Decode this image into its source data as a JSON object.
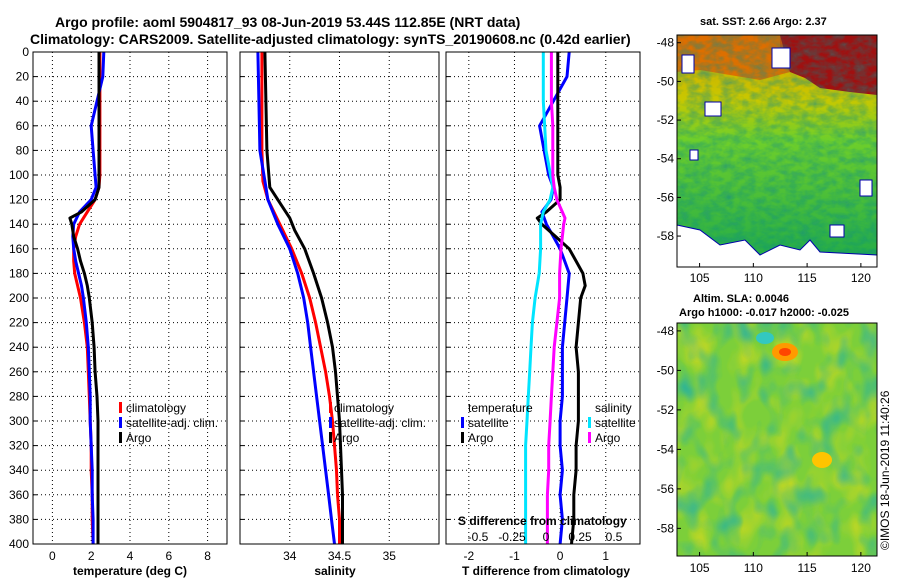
{
  "header": {
    "title_line1": "Argo profile: aoml 5904817_93 08-Jun-2019 53.44S 112.85E (NRT data)",
    "title_line2": "Climatology: CARS2009. Satellite-adjusted climatology: synTS_20190608.nc (0.42d earlier)"
  },
  "colors": {
    "climatology": "#ff0000",
    "satellite": "#0000ff",
    "argo": "#000000",
    "satellite_s": "#00e5ff",
    "argo_s": "#ff00ff"
  },
  "chart_data": [
    {
      "type": "line",
      "name": "temperature",
      "xlabel": "temperature (deg C)",
      "ylabel": "depth",
      "xlim": [
        -1,
        9
      ],
      "ylim": [
        400,
        0
      ],
      "xticks": [
        0,
        2,
        4,
        6,
        8
      ],
      "yticks": [
        0,
        20,
        40,
        60,
        80,
        100,
        120,
        140,
        160,
        180,
        200,
        220,
        240,
        260,
        280,
        300,
        320,
        340,
        360,
        380,
        400
      ],
      "grid": true,
      "legend": [
        "climatology",
        "satellite-adj. clim.",
        "Argo"
      ],
      "legend_position": "lower-right",
      "series": [
        {
          "name": "climatology",
          "color": "#ff0000",
          "depth": [
            0,
            20,
            40,
            60,
            80,
            100,
            110,
            120,
            130,
            140,
            150,
            160,
            170,
            180,
            190,
            200,
            220,
            240,
            260,
            280,
            300,
            320,
            340,
            360,
            380,
            400
          ],
          "values": [
            2.45,
            2.45,
            2.45,
            2.45,
            2.45,
            2.45,
            2.4,
            2.2,
            1.8,
            1.4,
            1.2,
            1.1,
            1.1,
            1.15,
            1.3,
            1.45,
            1.65,
            1.8,
            1.85,
            1.9,
            1.95,
            2.0,
            2.0,
            2.05,
            2.05,
            2.1
          ]
        },
        {
          "name": "satellite-adj. clim.",
          "color": "#0000ff",
          "depth": [
            0,
            20,
            40,
            60,
            80,
            100,
            110,
            120,
            130,
            140,
            150,
            160,
            170,
            180,
            190,
            200,
            220,
            240,
            260,
            280,
            300,
            320,
            340,
            360,
            380,
            400
          ],
          "values": [
            2.65,
            2.6,
            2.3,
            2.0,
            2.1,
            2.2,
            2.25,
            2.0,
            1.4,
            1.1,
            1.05,
            1.1,
            1.2,
            1.35,
            1.5,
            1.6,
            1.75,
            1.85,
            1.9,
            1.95,
            1.95,
            2.0,
            2.05,
            2.05,
            2.1,
            2.1
          ]
        },
        {
          "name": "Argo",
          "color": "#000000",
          "depth": [
            0,
            20,
            40,
            60,
            80,
            100,
            110,
            120,
            130,
            135,
            140,
            150,
            160,
            170,
            180,
            190,
            200,
            220,
            240,
            260,
            280,
            300,
            320,
            340,
            360,
            380,
            400
          ],
          "values": [
            2.4,
            2.4,
            2.4,
            2.4,
            2.4,
            2.4,
            2.4,
            2.2,
            1.5,
            0.9,
            1.0,
            1.1,
            1.3,
            1.45,
            1.65,
            1.8,
            1.9,
            2.05,
            2.15,
            2.2,
            2.3,
            2.35,
            2.35,
            2.35,
            2.35,
            2.35,
            2.35
          ]
        }
      ]
    },
    {
      "type": "line",
      "name": "salinity",
      "xlabel": "salinity",
      "ylabel": "depth",
      "xlim": [
        33.5,
        35.5
      ],
      "ylim": [
        400,
        0
      ],
      "xticks": [
        34,
        34.5,
        35
      ],
      "xticklabels": [
        "34",
        "34.5",
        "35"
      ],
      "yticks": [
        0,
        20,
        40,
        60,
        80,
        100,
        120,
        140,
        160,
        180,
        200,
        220,
        240,
        260,
        280,
        300,
        320,
        340,
        360,
        380,
        400
      ],
      "grid": true,
      "legend": [
        "climatology",
        "satellite-adj. clim.",
        "Argo"
      ],
      "legend_position": "lower-right",
      "series": [
        {
          "name": "climatology",
          "color": "#ff0000",
          "depth": [
            0,
            40,
            80,
            105,
            120,
            140,
            160,
            180,
            200,
            220,
            240,
            260,
            280,
            300,
            320,
            340,
            360,
            380,
            400
          ],
          "values": [
            33.72,
            33.72,
            33.72,
            33.73,
            33.78,
            33.9,
            34.02,
            34.12,
            34.2,
            34.26,
            34.31,
            34.36,
            34.4,
            34.43,
            34.45,
            34.47,
            34.48,
            34.5,
            34.5
          ]
        },
        {
          "name": "satellite-adj. clim.",
          "color": "#0000ff",
          "depth": [
            0,
            40,
            80,
            120,
            140,
            160,
            180,
            200,
            220,
            240,
            260,
            280,
            300,
            320,
            340,
            360,
            380,
            400
          ],
          "values": [
            33.68,
            33.69,
            33.7,
            33.78,
            33.88,
            34.0,
            34.08,
            34.14,
            34.18,
            34.21,
            34.24,
            34.27,
            34.3,
            34.33,
            34.36,
            34.39,
            34.42,
            34.45
          ]
        },
        {
          "name": "Argo",
          "color": "#000000",
          "depth": [
            0,
            40,
            80,
            110,
            125,
            135,
            145,
            160,
            180,
            200,
            220,
            240,
            260,
            280,
            300,
            320,
            340,
            360,
            380,
            400
          ],
          "values": [
            33.75,
            33.76,
            33.77,
            33.8,
            33.92,
            34.0,
            34.05,
            34.15,
            34.24,
            34.32,
            34.38,
            34.43,
            34.46,
            34.48,
            34.5,
            34.51,
            34.52,
            34.53,
            34.53,
            34.53
          ]
        }
      ]
    },
    {
      "type": "line",
      "name": "differences",
      "xlabel": "T difference from climatology",
      "xlim": [
        -2.5,
        1.75
      ],
      "ylim": [
        400,
        0
      ],
      "xticks": [
        -2,
        -1,
        0,
        1
      ],
      "top_axis_label": "S difference from climatology",
      "top_ticks": [
        -0.5,
        -0.25,
        0,
        0.25,
        0.5
      ],
      "top_ticklabels": [
        "-0.5",
        "-0.25",
        "0",
        "0.25",
        "0.5"
      ],
      "yticks": [
        0,
        20,
        40,
        60,
        80,
        100,
        120,
        140,
        160,
        180,
        200,
        220,
        240,
        260,
        280,
        300,
        320,
        340,
        360,
        380,
        400
      ],
      "grid": true,
      "legend_temperature_title": "temperature",
      "legend_salinity_title": "salinity",
      "legend_temperature": [
        "satellite",
        "Argo"
      ],
      "legend_salinity": [
        "satellite",
        "Argo"
      ],
      "series": [
        {
          "name": "T satellite",
          "color": "#0000ff",
          "depth": [
            0,
            20,
            40,
            60,
            80,
            100,
            110,
            120,
            130,
            140,
            150,
            160,
            170,
            180,
            200,
            220,
            240,
            260,
            280,
            300,
            320,
            340,
            360,
            380,
            400
          ],
          "values": [
            0.2,
            0.15,
            -0.15,
            -0.45,
            -0.35,
            -0.25,
            -0.15,
            -0.2,
            -0.4,
            -0.3,
            -0.15,
            0.0,
            0.1,
            0.2,
            0.15,
            0.1,
            0.05,
            0.05,
            0.05,
            0.0,
            0.0,
            0.05,
            0.0,
            0.05,
            0.0
          ]
        },
        {
          "name": "T Argo",
          "color": "#000000",
          "depth": [
            0,
            20,
            40,
            60,
            80,
            100,
            110,
            120,
            130,
            135,
            140,
            150,
            160,
            170,
            180,
            190,
            200,
            220,
            240,
            260,
            280,
            300,
            320,
            340,
            360,
            380,
            400
          ],
          "values": [
            -0.05,
            -0.05,
            -0.05,
            -0.05,
            -0.05,
            -0.05,
            0.0,
            0.0,
            -0.3,
            -0.5,
            -0.4,
            -0.1,
            0.2,
            0.35,
            0.5,
            0.55,
            0.45,
            0.4,
            0.35,
            0.4,
            0.4,
            0.4,
            0.35,
            0.35,
            0.3,
            0.3,
            0.25
          ]
        },
        {
          "name": "S satellite",
          "color": "#00e5ff",
          "depth": [
            0,
            40,
            80,
            110,
            120,
            130,
            140,
            160,
            180,
            200,
            220,
            240,
            260,
            280,
            300,
            320,
            340,
            360,
            380,
            400
          ],
          "values": [
            -0.02,
            -0.02,
            0.0,
            0.05,
            0.03,
            -0.02,
            -0.04,
            -0.04,
            -0.05,
            -0.08,
            -0.1,
            -0.11,
            -0.12,
            -0.13,
            -0.14,
            -0.15,
            -0.15,
            -0.15,
            -0.15,
            -0.15
          ]
        },
        {
          "name": "S Argo",
          "color": "#ff00ff",
          "depth": [
            0,
            20,
            40,
            60,
            80,
            100,
            110,
            120,
            130,
            135,
            140,
            160,
            180,
            200,
            220,
            240,
            260,
            280,
            300,
            320,
            340,
            360,
            380,
            400
          ],
          "values": [
            0.04,
            0.04,
            0.04,
            0.05,
            0.05,
            0.05,
            0.06,
            0.08,
            0.12,
            0.14,
            0.13,
            0.11,
            0.1,
            0.1,
            0.08,
            0.06,
            0.05,
            0.04,
            0.03,
            0.02,
            0.02,
            0.01,
            0.01,
            0.01
          ]
        }
      ]
    },
    {
      "type": "heatmap",
      "name": "sst_map",
      "title": "sat. SST: 2.66 Argo: 2.37",
      "xticks": [
        105,
        110,
        115,
        120
      ],
      "yticks": [
        -48,
        -50,
        -52,
        -54,
        -56,
        -58
      ]
    },
    {
      "type": "heatmap",
      "name": "sla_map",
      "title_line1": "Altim. SLA: 0.0046",
      "title_line2": "Argo h1000: -0.017 h2000: -0.025",
      "xticks": [
        105,
        110,
        115,
        120
      ],
      "yticks": [
        -48,
        -50,
        -52,
        -54,
        -56,
        -58
      ]
    }
  ],
  "footer": {
    "credit": "©IMOS 18-Jun-2019 11:40:26"
  }
}
